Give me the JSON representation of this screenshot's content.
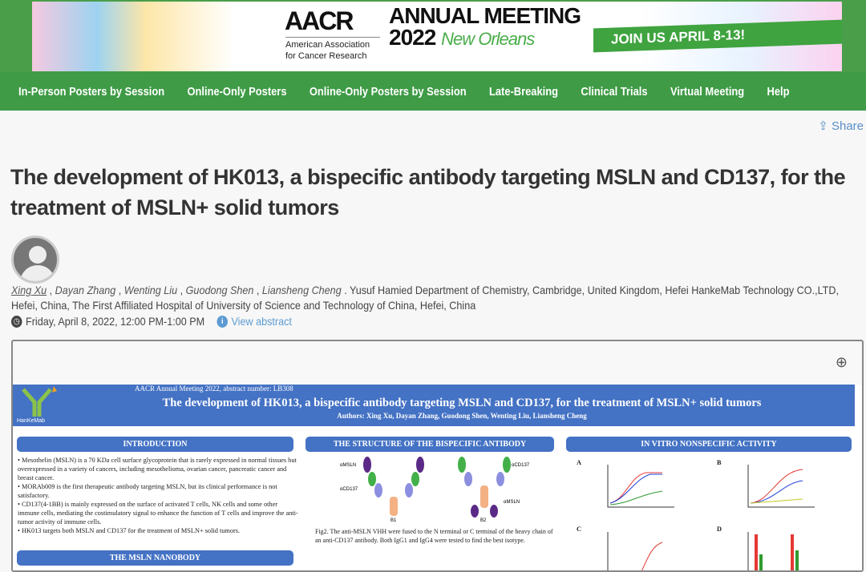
{
  "banner": {
    "org": "AACR",
    "org_full": "American Association for Cancer Research",
    "event": "ANNUAL MEETING",
    "year": "2022",
    "city": "New Orleans",
    "cta": "JOIN US APRIL 8-13!"
  },
  "nav": [
    "In-Person Posters by Session",
    "Online-Only Posters",
    "Online-Only Posters by Session",
    "Late-Breaking",
    "Clinical Trials",
    "Virtual Meeting",
    "Help"
  ],
  "share": "Share",
  "title": "The development of HK013, a bispecific antibody targeting MSLN and CD137, for the treatment of MSLN+ solid tumors",
  "authors": [
    "Xing Xu",
    "Dayan Zhang",
    "Wenting Liu",
    "Guodong Shen",
    "Liansheng Cheng"
  ],
  "affiliation": ". Yusuf Hamied Department of Chemistry, Cambridge, United Kingdom, Hefei HankeMab Technology CO.,LTD, Hefei, China, The First Affiliated Hospital of University of Science and Technology of China, Hefei, China",
  "time": "Friday, April 8, 2022, 12:00 PM-1:00 PM",
  "view_abstract": "View abstract",
  "poster": {
    "meeting": "AACR Annual Meeting 2022, abstract number: LB308",
    "title": "The development of HK013, a bispecific antibody targeting MSLN and CD137, for the treatment of MSLN+ solid tumors",
    "authors": "Authors: Xing Xu, Dayan Zhang, Guodong Shen, Wenting Liu, Liansheng Cheng",
    "logo": "HanKeMab",
    "sections": {
      "intro": "INTRODUCTION",
      "structure": "THE STRUCTURE OF THE BISPECIFIC ANTIBODY",
      "invitro": "IN VITRO NONSPECIFIC ACTIVITY",
      "nanobody": "THE MSLN NANOBODY"
    },
    "intro_bullets": [
      "Mesothelin (MSLN) is a 70 KDa cell surface glycoprotein that is rarely expressed in normal tissues but overexpressed in a variety of cancers, including mesothelioma, ovarian cancer, pancreatic cancer and breast cancer.",
      "MORAb009 is the first therapeutic antibody targeting MSLN, but its clinical performance is not satisfactory.",
      "CD137(4-1BB) is mainly expressed on the surface of activated T cells, NK cells and some other immune cells, mediating the costimulatory signal to enhance the function of T cells and improve the anti-tumor activity of immune cells.",
      "HK013 targets both MSLN and CD137 for the treatment of MSLN+ solid tumors."
    ],
    "fig2_caption": "Fig2. The anti-MSLN VHH were fused to the N terminal or C terminal of the heavy chain of an anti-CD137 antibody. Both IgG1 and IgG4 were tested to find the best isotype.",
    "struct_labels": [
      "αMSLN",
      "αCD137",
      "B1",
      "αCD137",
      "B2",
      "αMSLN"
    ],
    "panels": [
      "A",
      "B",
      "C",
      "D"
    ]
  }
}
